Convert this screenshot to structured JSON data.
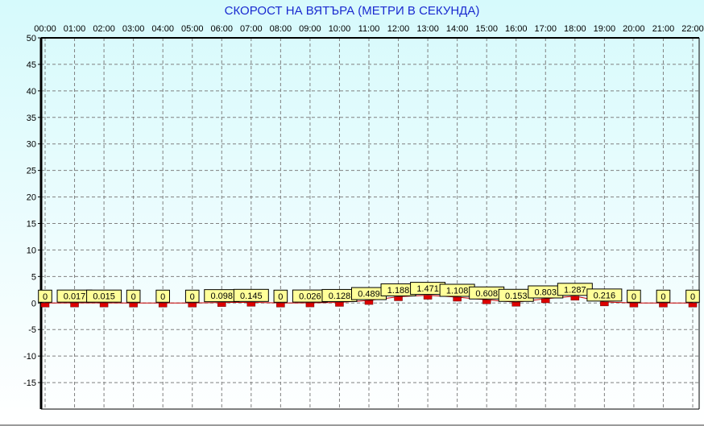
{
  "chart_data": {
    "type": "line",
    "title": "СКОРОСТ НА ВЯТЪРА (МЕТРИ В СЕКУНДА)",
    "xlabel": "",
    "ylabel": "",
    "categories": [
      "00:00",
      "01:00",
      "02:00",
      "03:00",
      "04:00",
      "05:00",
      "06:00",
      "07:00",
      "08:00",
      "09:00",
      "10:00",
      "11:00",
      "12:00",
      "13:00",
      "14:00",
      "15:00",
      "16:00",
      "17:00",
      "18:00",
      "19:00",
      "20:00",
      "21:00",
      "22:00"
    ],
    "values": [
      0,
      0.017,
      0.015,
      0,
      0,
      0,
      0.098,
      0.145,
      0,
      0.026,
      0.128,
      0.489,
      1.188,
      1.471,
      1.108,
      0.608,
      0.153,
      0.803,
      1.287,
      0.216,
      0,
      0,
      0
    ],
    "data_labels": [
      "0",
      "0.017",
      "0.015",
      "0",
      "0",
      "0",
      "0.098",
      "0.145",
      "0",
      "0.026",
      "0.128",
      "0.489",
      "1.188",
      "1.471",
      "1.108",
      "0.608",
      "0.153",
      "0.803",
      "1.287",
      "0.216",
      "0",
      "0",
      "0"
    ],
    "ylim": [
      -20,
      50
    ],
    "yticks": [
      50,
      45,
      40,
      35,
      30,
      25,
      20,
      15,
      10,
      5,
      0,
      -5,
      -10,
      -15
    ],
    "x_axis_position": "top",
    "grid": true,
    "legend": "none",
    "colors": {
      "line": "#cc0000",
      "marker": "#dd0000",
      "label_bg": "#ffff99",
      "title": "#1a2ad0",
      "grid": "#808080"
    }
  }
}
